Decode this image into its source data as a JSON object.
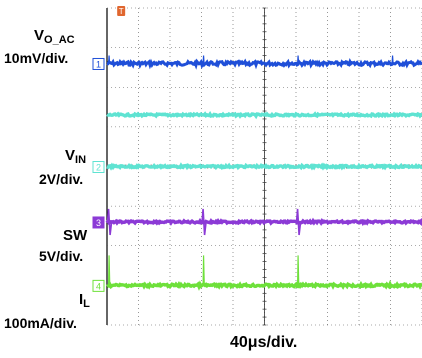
{
  "channels": [
    {
      "id": "1",
      "name_main": "V",
      "name_sub": "O_AC",
      "scale": "10mV/div.",
      "color": "#1f4fd8",
      "marker_fill": "#ffffff"
    },
    {
      "id": "",
      "name_main": "",
      "name_sub": "",
      "scale": "",
      "color": "#5fe3d2",
      "marker_fill": "#ffffff"
    },
    {
      "id": "2",
      "name_main": "V",
      "name_sub": "IN",
      "scale": "2V/div.",
      "color": "#5fe3d2",
      "marker_fill": "#ffffff"
    },
    {
      "id": "3",
      "name_main": "SW",
      "name_sub": "",
      "scale": "5V/div.",
      "color": "#8c3ad6",
      "marker_fill": "#8c3ad6"
    },
    {
      "id": "4",
      "name_main": "I",
      "name_sub": "L",
      "scale": "100mA/div.",
      "color": "#6ee03a",
      "marker_fill": "#ffffff"
    }
  ],
  "timebase": "40μs/div.",
  "trigger_label": "T",
  "chart_data": {
    "type": "line",
    "x_divisions": 10,
    "y_divisions": 8,
    "spike_period_divisions": 3,
    "series": [
      {
        "name": "VO_AC",
        "channel": "1",
        "scale": "10mV/div.",
        "level_div": 6.6,
        "spikes_at_div": [
          0.05,
          3.05,
          6.05,
          9.05
        ]
      },
      {
        "channel": "",
        "level_div": 5.3
      },
      {
        "name": "VIN",
        "channel": "2",
        "scale": "2V/div.",
        "level_div": 4.0
      },
      {
        "name": "SW",
        "channel": "3",
        "scale": "5V/div.",
        "level_div": 2.6,
        "spikes_at_div": [
          0.05,
          3.05,
          6.05
        ]
      },
      {
        "name": "IL",
        "channel": "4",
        "scale": "100mA/div.",
        "level_div": 1.0,
        "spikes_at_div": [
          0.05,
          3.05,
          6.05
        ]
      }
    ]
  }
}
